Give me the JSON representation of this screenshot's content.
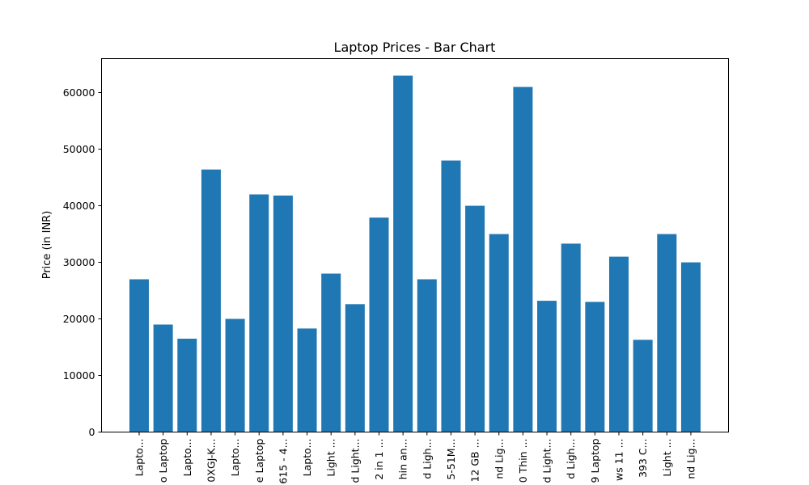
{
  "chart_data": {
    "type": "bar",
    "title": "Laptop Prices - Bar Chart",
    "xlabel": "",
    "ylabel": "Price (in INR)",
    "ylim": [
      0,
      66000
    ],
    "yticks": [
      0,
      10000,
      20000,
      30000,
      40000,
      50000,
      60000
    ],
    "grid": false,
    "bar_color": "#1f77b4",
    "categories": [
      "Lapto...",
      "o Laptop",
      "Lapto...",
      "0XGJ-K...",
      "Lapto...",
      "e Laptop",
      "615 - 4...",
      "Lapto...",
      "Light ...",
      "d Light...",
      "2 in 1 ...",
      "hin an...",
      "d Ligh...",
      "5-51M...",
      "12 GB ...",
      "nd Lig...",
      "0 Thin ...",
      "d Light...",
      "d Ligh...",
      "9 Laptop",
      "ws 11 ...",
      "393 C...",
      "Light ...",
      "nd Lig..."
    ],
    "values": [
      27000,
      19000,
      16500,
      46400,
      20000,
      42000,
      41800,
      18300,
      28000,
      22600,
      37900,
      62990,
      27000,
      47990,
      39990,
      34990,
      60990,
      23200,
      33300,
      23000,
      30990,
      16300,
      34990,
      29990
    ]
  }
}
